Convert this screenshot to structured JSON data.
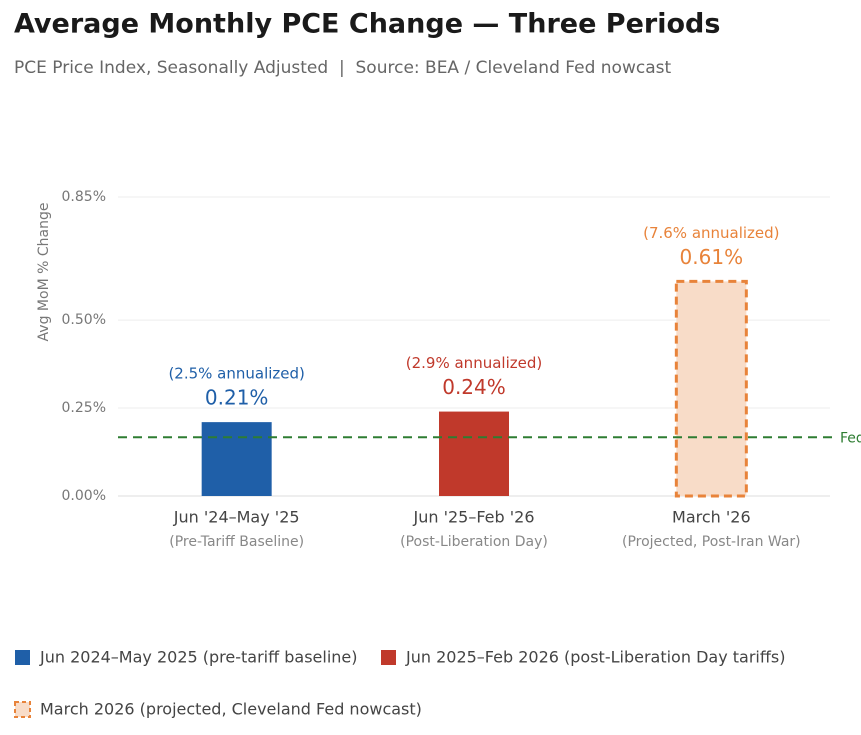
{
  "chart_data": {
    "type": "bar",
    "title": "Average Monthly PCE Change — Three Periods",
    "subtitle": "PCE Price Index, Seasonally Adjusted  |  Source: BEA / Cleveland Fed nowcast",
    "y_label": "Avg MoM % Change",
    "categories": [
      "Jun '24–May '25",
      "Jun '25–Feb '26",
      "March '26"
    ],
    "category_notes": [
      "(Pre-Tariff Baseline)",
      "(Post-Liberation Day)",
      "(Projected, Post-Iran War)"
    ],
    "values": [
      0.21,
      0.24,
      0.61
    ],
    "value_labels": [
      "0.21%",
      "0.24%",
      "0.61%"
    ],
    "annotations": [
      "(2.5% annualized)",
      "(2.9% annualized)",
      "(7.6% annualized)"
    ],
    "colors": [
      "#1f5fa8",
      "#c0392b",
      "#e8833a"
    ],
    "fill_colors": [
      "#1f5fa8",
      "#c0392b",
      "#f8dcc8"
    ],
    "styles": [
      "solid",
      "solid",
      "dashed"
    ],
    "ylim": [
      0,
      0.85
    ],
    "yticks": [
      {
        "value": 0,
        "label": "0.00%"
      },
      {
        "value": 0.25,
        "label": "0.25%"
      },
      {
        "value": 0.5,
        "label": "0.50%"
      },
      {
        "value": 0.85,
        "label": "0.85%"
      }
    ],
    "grid": true,
    "reference_line": {
      "value": 0.167,
      "label": "Fed",
      "color": "#2e7d32"
    },
    "legend": [
      {
        "label": "Jun 2024–May 2025 (pre-tariff baseline)",
        "color": "#1f5fa8",
        "fill": "#1f5fa8",
        "style": "solid"
      },
      {
        "label": "Jun 2025–Feb 2026 (post-Liberation Day tariffs)",
        "color": "#c0392b",
        "fill": "#c0392b",
        "style": "solid"
      },
      {
        "label": "March 2026 (projected, Cleveland Fed nowcast)",
        "color": "#e8833a",
        "fill": "#f8dcc8",
        "style": "dashed"
      }
    ]
  }
}
